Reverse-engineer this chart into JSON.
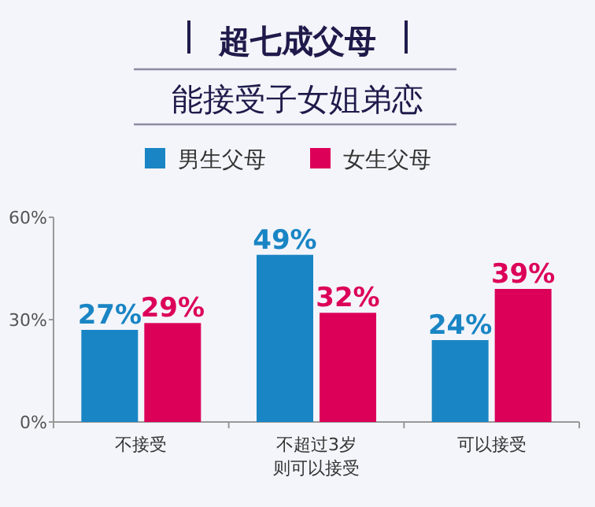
{
  "chart_data": {
    "type": "bar",
    "title": "超七成父母",
    "subtitle": "能接受子女姐弟恋",
    "categories": [
      "不接受",
      "不超过3岁则可以接受",
      "可以接受"
    ],
    "series": [
      {
        "name": "男生父母",
        "color": "#1a85c4",
        "values": [
          27,
          49,
          24
        ],
        "value_labels": [
          "27%",
          "49%",
          "24%"
        ]
      },
      {
        "name": "女生父母",
        "color": "#dc0059",
        "values": [
          29,
          32,
          39
        ],
        "value_labels": [
          "29%",
          "32%",
          "39%"
        ]
      }
    ],
    "ylim": [
      0,
      60
    ],
    "yticks": [
      {
        "value": 0,
        "label": "0%"
      },
      {
        "value": 30,
        "label": "30%"
      },
      {
        "value": 60,
        "label": "60%"
      }
    ],
    "legend": "top",
    "grid": false
  }
}
